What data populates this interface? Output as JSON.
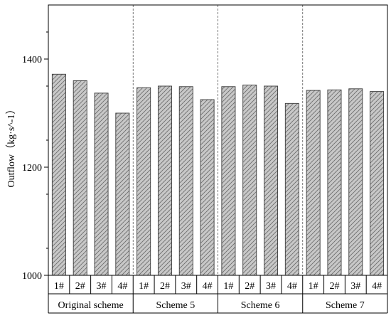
{
  "chart_data": {
    "type": "bar",
    "ylabel": "Outflow（kg·s^-1）",
    "ylim": [
      1000,
      1500
    ],
    "yticks": [
      1000,
      1200,
      1400
    ],
    "grid": false,
    "groups": [
      {
        "label": "Original scheme",
        "categories": [
          "1#",
          "2#",
          "3#",
          "4#"
        ],
        "values": [
          1372,
          1360,
          1337,
          1300
        ]
      },
      {
        "label": "Scheme 5",
        "categories": [
          "1#",
          "2#",
          "3#",
          "4#"
        ],
        "values": [
          1347,
          1350,
          1349,
          1325
        ]
      },
      {
        "label": "Scheme 6",
        "categories": [
          "1#",
          "2#",
          "3#",
          "4#"
        ],
        "values": [
          1349,
          1352,
          1350,
          1318
        ]
      },
      {
        "label": "Scheme 7",
        "categories": [
          "1#",
          "2#",
          "3#",
          "4#"
        ],
        "values": [
          1342,
          1343,
          1345,
          1340
        ]
      }
    ],
    "colors": {
      "bar_fill": "#c8c8c8",
      "bar_stroke": "#3a3a3a",
      "hatch": "#6a6a6a",
      "axis": "#000000",
      "separator": "#555555"
    }
  }
}
